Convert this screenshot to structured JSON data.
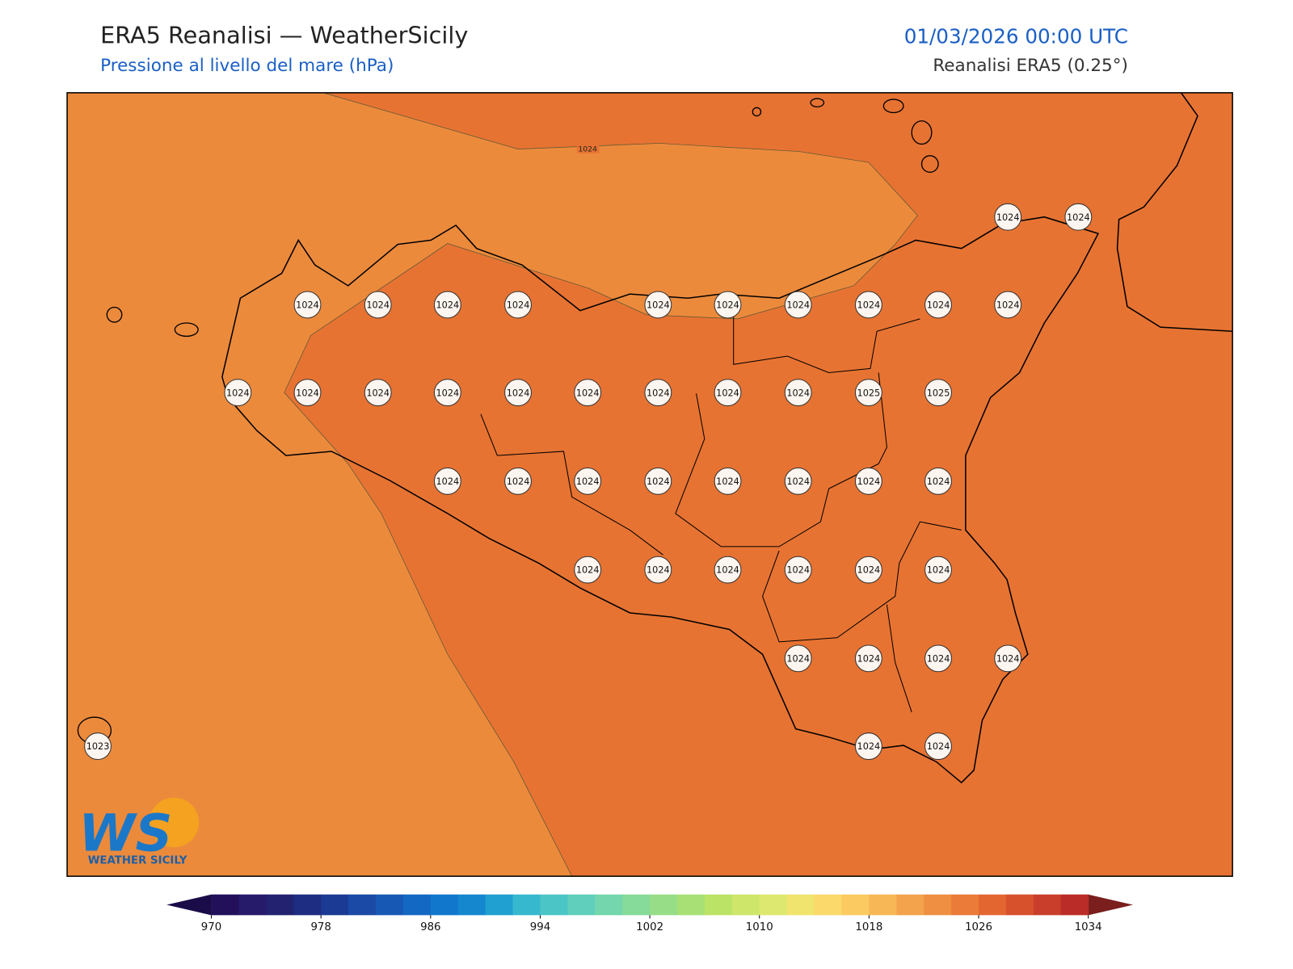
{
  "header": {
    "title": "ERA5 Reanalisi — WeatherSicily",
    "subtitle": "Pressione al livello del mare (hPa)",
    "datetime": "01/03/2026 00:00 UTC",
    "source": "Reanalisi ERA5 (0.25°)"
  },
  "map": {
    "contour_label": "1024",
    "fill_colors": [
      "#ec8a3c",
      "#e77332"
    ],
    "station_values": [
      1024,
      1024,
      1024,
      1024,
      1024,
      1024,
      1024,
      1024,
      1024,
      1024,
      1024,
      1024,
      1024,
      1024,
      1024,
      1024,
      1024,
      1024,
      1024,
      1024,
      1024,
      1025,
      1025,
      1024,
      1024,
      1024,
      1024,
      1024,
      1024,
      1024,
      1024,
      1024,
      1024,
      1024,
      1024,
      1024,
      1024,
      1024,
      1024,
      1024,
      1024,
      1023,
      1024,
      1024
    ]
  },
  "colorbar": {
    "clim": [
      970,
      1034
    ],
    "ticks": [
      970,
      978,
      986,
      994,
      1002,
      1010,
      1018,
      1026,
      1034
    ],
    "colors": [
      "#22105a",
      "#261a6b",
      "#232270",
      "#1e2c82",
      "#1b3a93",
      "#1a4aa5",
      "#1858b5",
      "#1368c3",
      "#1177cd",
      "#1587cf",
      "#20a0d0",
      "#36b8cf",
      "#4cc5c6",
      "#60cfbc",
      "#73d6ad",
      "#86da9a",
      "#97dd87",
      "#a8e076",
      "#bbe366",
      "#cee66a",
      "#dde870",
      "#f0e46e",
      "#fbd96a",
      "#fbca60",
      "#f8b756",
      "#f3a34c",
      "#ee8f42",
      "#ea7b38",
      "#e36631",
      "#d8512d",
      "#c93e2b",
      "#ba2c27"
    ],
    "under_color": "#1a0c48",
    "over_color": "#7a1e1e"
  },
  "logo": {
    "text": "WS",
    "caption": "WEATHER SICILY"
  }
}
